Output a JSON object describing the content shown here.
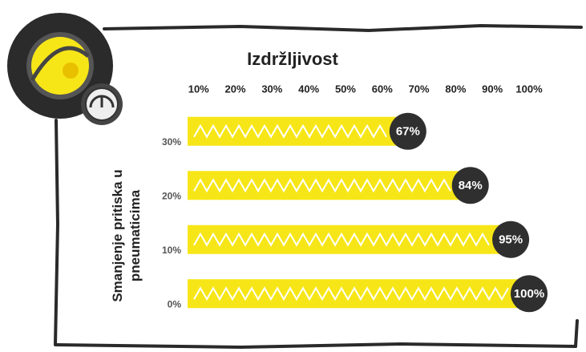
{
  "chart_data": {
    "type": "hbar",
    "title": "Izdržljivost",
    "y_label": "Smanjenje pritiska u pneumaticima",
    "categories": [
      "30%",
      "20%",
      "10%",
      "0%"
    ],
    "values": [
      67,
      84,
      95,
      100
    ],
    "value_labels": [
      "67%",
      "84%",
      "95%",
      "100%"
    ],
    "color": "#f7e617",
    "xlim": [
      7,
      100
    ],
    "xticks": [
      {
        "value": 10,
        "label": "10%"
      },
      {
        "value": 20,
        "label": "20%"
      },
      {
        "value": 30,
        "label": "30%"
      },
      {
        "value": 40,
        "label": "40%"
      },
      {
        "value": 50,
        "label": "50%"
      },
      {
        "value": 60,
        "label": "60%"
      },
      {
        "value": 70,
        "label": "70%"
      },
      {
        "value": 80,
        "label": "80%"
      },
      {
        "value": 90,
        "label": "90%"
      },
      {
        "value": 100,
        "label": "100%"
      }
    ]
  }
}
